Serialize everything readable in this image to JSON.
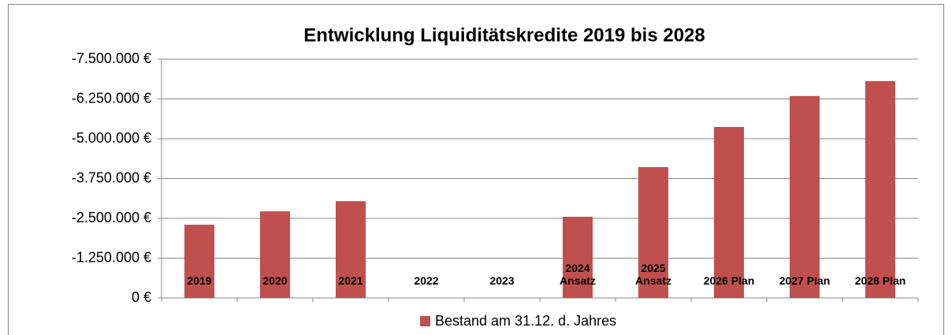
{
  "chart_data": {
    "type": "bar",
    "title": "Entwicklung Liquiditätskredite 2019 bis 2028",
    "categories": [
      "2019",
      "2020",
      "2021",
      "2022",
      "2023",
      "2024\nAnsatz",
      "2025\nAnsatz",
      "2026 Plan",
      "2027 Plan",
      "2028 Plan"
    ],
    "series": [
      {
        "name": "Bestand am 31.12. d. Jahres",
        "color": "#c0504d",
        "values": [
          -2300000,
          -2720000,
          -3040000,
          null,
          null,
          -2550000,
          -4110000,
          -5370000,
          -6340000,
          -6810000
        ]
      }
    ],
    "ylim": [
      0,
      -7500000
    ],
    "yticks": [
      {
        "value": 0,
        "label": "0 €"
      },
      {
        "value": -1250000,
        "label": "-1.250.000 €"
      },
      {
        "value": -2500000,
        "label": "-2.500.000 €"
      },
      {
        "value": -3750000,
        "label": "-3.750.000 €"
      },
      {
        "value": -5000000,
        "label": "-5.000.000 €"
      },
      {
        "value": -6250000,
        "label": "-6.250.000 €"
      },
      {
        "value": -7500000,
        "label": "-7.500.000 €"
      }
    ],
    "grid": true
  }
}
